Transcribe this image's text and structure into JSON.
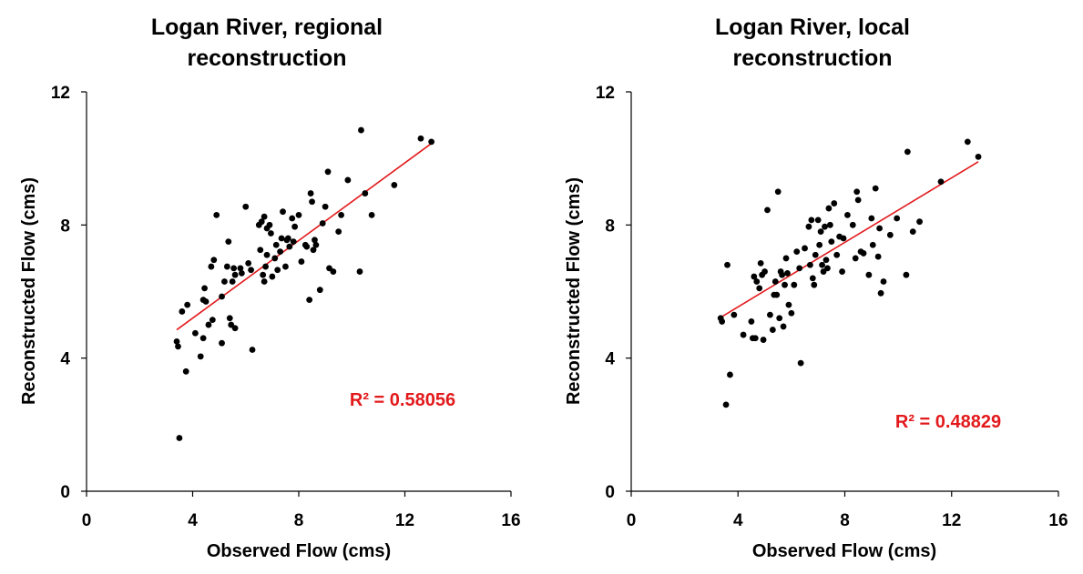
{
  "chart_data": [
    {
      "type": "scatter",
      "title_lines": [
        "Logan River, regional",
        "reconstruction"
      ],
      "xlabel": "Observed Flow (cms)",
      "ylabel": "Reconstructed Flow (cms)",
      "xlim": [
        0,
        16
      ],
      "ylim": [
        0,
        12
      ],
      "xticks": [
        0,
        4,
        8,
        12,
        16
      ],
      "yticks": [
        0,
        4,
        8,
        12
      ],
      "grid": false,
      "marker_color": "#000000",
      "trendline": {
        "color": "#e31a1c",
        "x": [
          3.4,
          13.0
        ],
        "y": [
          4.85,
          10.45
        ]
      },
      "annotation": {
        "text": "R² = 0.58056",
        "color": "#e31a1c"
      },
      "points": [
        [
          3.4,
          4.5
        ],
        [
          3.45,
          4.35
        ],
        [
          3.6,
          5.4
        ],
        [
          3.5,
          1.6
        ],
        [
          3.75,
          3.6
        ],
        [
          3.8,
          5.6
        ],
        [
          4.1,
          4.75
        ],
        [
          4.3,
          4.05
        ],
        [
          4.4,
          4.6
        ],
        [
          4.4,
          5.75
        ],
        [
          4.45,
          6.1
        ],
        [
          4.5,
          5.7
        ],
        [
          4.6,
          5.0
        ],
        [
          4.7,
          6.75
        ],
        [
          4.75,
          5.15
        ],
        [
          4.8,
          6.95
        ],
        [
          4.9,
          8.3
        ],
        [
          5.1,
          4.45
        ],
        [
          5.1,
          5.85
        ],
        [
          5.2,
          6.3
        ],
        [
          5.3,
          6.75
        ],
        [
          5.35,
          7.5
        ],
        [
          5.4,
          5.2
        ],
        [
          5.45,
          5.0
        ],
        [
          5.5,
          6.3
        ],
        [
          5.55,
          6.7
        ],
        [
          5.6,
          4.9
        ],
        [
          5.6,
          6.5
        ],
        [
          5.8,
          6.7
        ],
        [
          5.85,
          6.55
        ],
        [
          6.0,
          8.55
        ],
        [
          6.1,
          6.85
        ],
        [
          6.2,
          6.65
        ],
        [
          6.25,
          4.25
        ],
        [
          6.5,
          8.0
        ],
        [
          6.55,
          7.25
        ],
        [
          6.6,
          8.1
        ],
        [
          6.65,
          6.5
        ],
        [
          6.7,
          8.25
        ],
        [
          6.7,
          6.3
        ],
        [
          6.75,
          6.75
        ],
        [
          6.8,
          7.9
        ],
        [
          6.8,
          7.1
        ],
        [
          6.9,
          8.0
        ],
        [
          6.95,
          7.75
        ],
        [
          7.0,
          6.45
        ],
        [
          7.1,
          7.0
        ],
        [
          7.15,
          7.4
        ],
        [
          7.2,
          6.65
        ],
        [
          7.3,
          7.2
        ],
        [
          7.35,
          7.6
        ],
        [
          7.4,
          8.4
        ],
        [
          7.5,
          6.75
        ],
        [
          7.55,
          7.55
        ],
        [
          7.6,
          7.6
        ],
        [
          7.65,
          7.35
        ],
        [
          7.75,
          8.2
        ],
        [
          7.8,
          7.5
        ],
        [
          7.85,
          7.95
        ],
        [
          8.0,
          8.3
        ],
        [
          8.1,
          6.9
        ],
        [
          8.25,
          7.4
        ],
        [
          8.3,
          7.35
        ],
        [
          8.4,
          5.75
        ],
        [
          8.45,
          8.95
        ],
        [
          8.5,
          8.7
        ],
        [
          8.55,
          7.25
        ],
        [
          8.6,
          7.55
        ],
        [
          8.65,
          7.4
        ],
        [
          8.8,
          6.05
        ],
        [
          8.9,
          8.05
        ],
        [
          9.0,
          8.55
        ],
        [
          9.1,
          9.6
        ],
        [
          9.15,
          6.7
        ],
        [
          9.3,
          6.6
        ],
        [
          9.5,
          7.8
        ],
        [
          9.6,
          8.3
        ],
        [
          9.85,
          9.35
        ],
        [
          10.3,
          6.6
        ],
        [
          10.35,
          10.85
        ],
        [
          10.5,
          8.95
        ],
        [
          10.75,
          8.3
        ],
        [
          11.6,
          9.2
        ],
        [
          12.6,
          10.6
        ],
        [
          13.0,
          10.5
        ]
      ]
    },
    {
      "type": "scatter",
      "title_lines": [
        "Logan River, local",
        "reconstruction"
      ],
      "xlabel": "Observed Flow (cms)",
      "ylabel": "Reconstructed Flow (cms)",
      "xlim": [
        0,
        16
      ],
      "ylim": [
        0,
        12
      ],
      "xticks": [
        0,
        4,
        8,
        12,
        16
      ],
      "yticks": [
        0,
        4,
        8,
        12
      ],
      "grid": false,
      "marker_color": "#000000",
      "trendline": {
        "color": "#e31a1c",
        "x": [
          3.3,
          13.0
        ],
        "y": [
          5.2,
          9.9
        ]
      },
      "annotation": {
        "text": "R² = 0.48829",
        "color": "#e31a1c"
      },
      "points": [
        [
          3.35,
          5.2
        ],
        [
          3.4,
          5.1
        ],
        [
          3.55,
          2.6
        ],
        [
          3.6,
          6.8
        ],
        [
          3.7,
          3.5
        ],
        [
          3.85,
          5.3
        ],
        [
          4.2,
          4.7
        ],
        [
          4.5,
          5.1
        ],
        [
          4.55,
          4.6
        ],
        [
          4.6,
          6.45
        ],
        [
          4.65,
          4.6
        ],
        [
          4.7,
          6.3
        ],
        [
          4.8,
          6.1
        ],
        [
          4.85,
          6.85
        ],
        [
          4.9,
          6.5
        ],
        [
          4.95,
          4.55
        ],
        [
          5.0,
          6.6
        ],
        [
          5.1,
          8.45
        ],
        [
          5.2,
          5.3
        ],
        [
          5.3,
          4.85
        ],
        [
          5.35,
          5.9
        ],
        [
          5.4,
          6.3
        ],
        [
          5.45,
          5.9
        ],
        [
          5.5,
          9.0
        ],
        [
          5.55,
          5.2
        ],
        [
          5.6,
          6.6
        ],
        [
          5.65,
          6.5
        ],
        [
          5.7,
          4.95
        ],
        [
          5.75,
          6.2
        ],
        [
          5.8,
          7.0
        ],
        [
          5.85,
          6.55
        ],
        [
          5.9,
          5.6
        ],
        [
          6.0,
          5.35
        ],
        [
          6.1,
          6.2
        ],
        [
          6.2,
          7.2
        ],
        [
          6.3,
          6.7
        ],
        [
          6.35,
          3.85
        ],
        [
          6.5,
          7.3
        ],
        [
          6.65,
          7.95
        ],
        [
          6.7,
          6.8
        ],
        [
          6.75,
          8.15
        ],
        [
          6.8,
          6.4
        ],
        [
          6.85,
          6.2
        ],
        [
          6.9,
          7.1
        ],
        [
          7.0,
          8.15
        ],
        [
          7.05,
          7.4
        ],
        [
          7.1,
          7.8
        ],
        [
          7.15,
          6.8
        ],
        [
          7.2,
          6.6
        ],
        [
          7.25,
          7.95
        ],
        [
          7.3,
          6.95
        ],
        [
          7.35,
          6.7
        ],
        [
          7.4,
          8.5
        ],
        [
          7.45,
          8.0
        ],
        [
          7.5,
          7.5
        ],
        [
          7.6,
          8.65
        ],
        [
          7.7,
          7.1
        ],
        [
          7.8,
          7.65
        ],
        [
          7.9,
          6.6
        ],
        [
          7.95,
          7.6
        ],
        [
          8.1,
          8.3
        ],
        [
          8.3,
          8.0
        ],
        [
          8.4,
          7.0
        ],
        [
          8.45,
          9.0
        ],
        [
          8.5,
          8.75
        ],
        [
          8.6,
          7.2
        ],
        [
          8.7,
          7.15
        ],
        [
          8.9,
          6.5
        ],
        [
          9.0,
          8.2
        ],
        [
          9.05,
          7.4
        ],
        [
          9.15,
          9.1
        ],
        [
          9.25,
          7.05
        ],
        [
          9.3,
          7.9
        ],
        [
          9.35,
          5.95
        ],
        [
          9.45,
          6.3
        ],
        [
          9.7,
          7.7
        ],
        [
          9.95,
          8.2
        ],
        [
          10.3,
          6.5
        ],
        [
          10.35,
          10.2
        ],
        [
          10.55,
          7.8
        ],
        [
          10.8,
          8.1
        ],
        [
          11.6,
          9.3
        ],
        [
          12.6,
          10.5
        ],
        [
          13.0,
          10.05
        ]
      ]
    }
  ]
}
